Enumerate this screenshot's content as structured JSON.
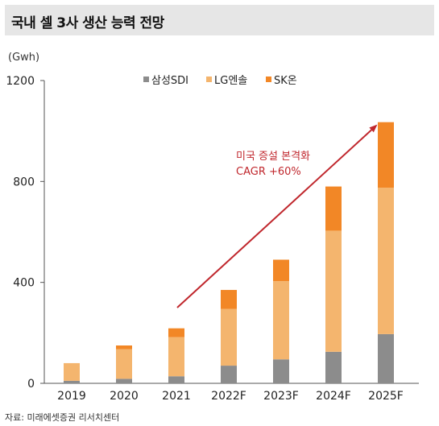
{
  "title": "국내 셀 3사 생산 능력 전망",
  "source": "자료: 미래에셋증권 리서치센터",
  "annotation": {
    "line1": "미국 증설 본격화",
    "line2": "CAGR +60%",
    "color": "#c0272d"
  },
  "chart_data": {
    "type": "bar",
    "stacked": true,
    "unit_label": "(Gwh)",
    "categories": [
      "2019",
      "2020",
      "2021",
      "2022F",
      "2023F",
      "2024F",
      "2025F"
    ],
    "series": [
      {
        "name": "삼성SDI",
        "color": "#8c8c8c",
        "values": [
          10,
          18,
          28,
          70,
          95,
          125,
          195
        ]
      },
      {
        "name": "LG엔솔",
        "color": "#f4b56e",
        "values": [
          70,
          117,
          155,
          225,
          310,
          480,
          580
        ]
      },
      {
        "name": "SK온",
        "color": "#f28726",
        "values": [
          0,
          15,
          35,
          75,
          85,
          175,
          260
        ]
      }
    ],
    "ylim": [
      0,
      1200
    ],
    "yticks": [
      0,
      400,
      800,
      1200
    ],
    "legend_position": "top-center",
    "grid": false
  }
}
